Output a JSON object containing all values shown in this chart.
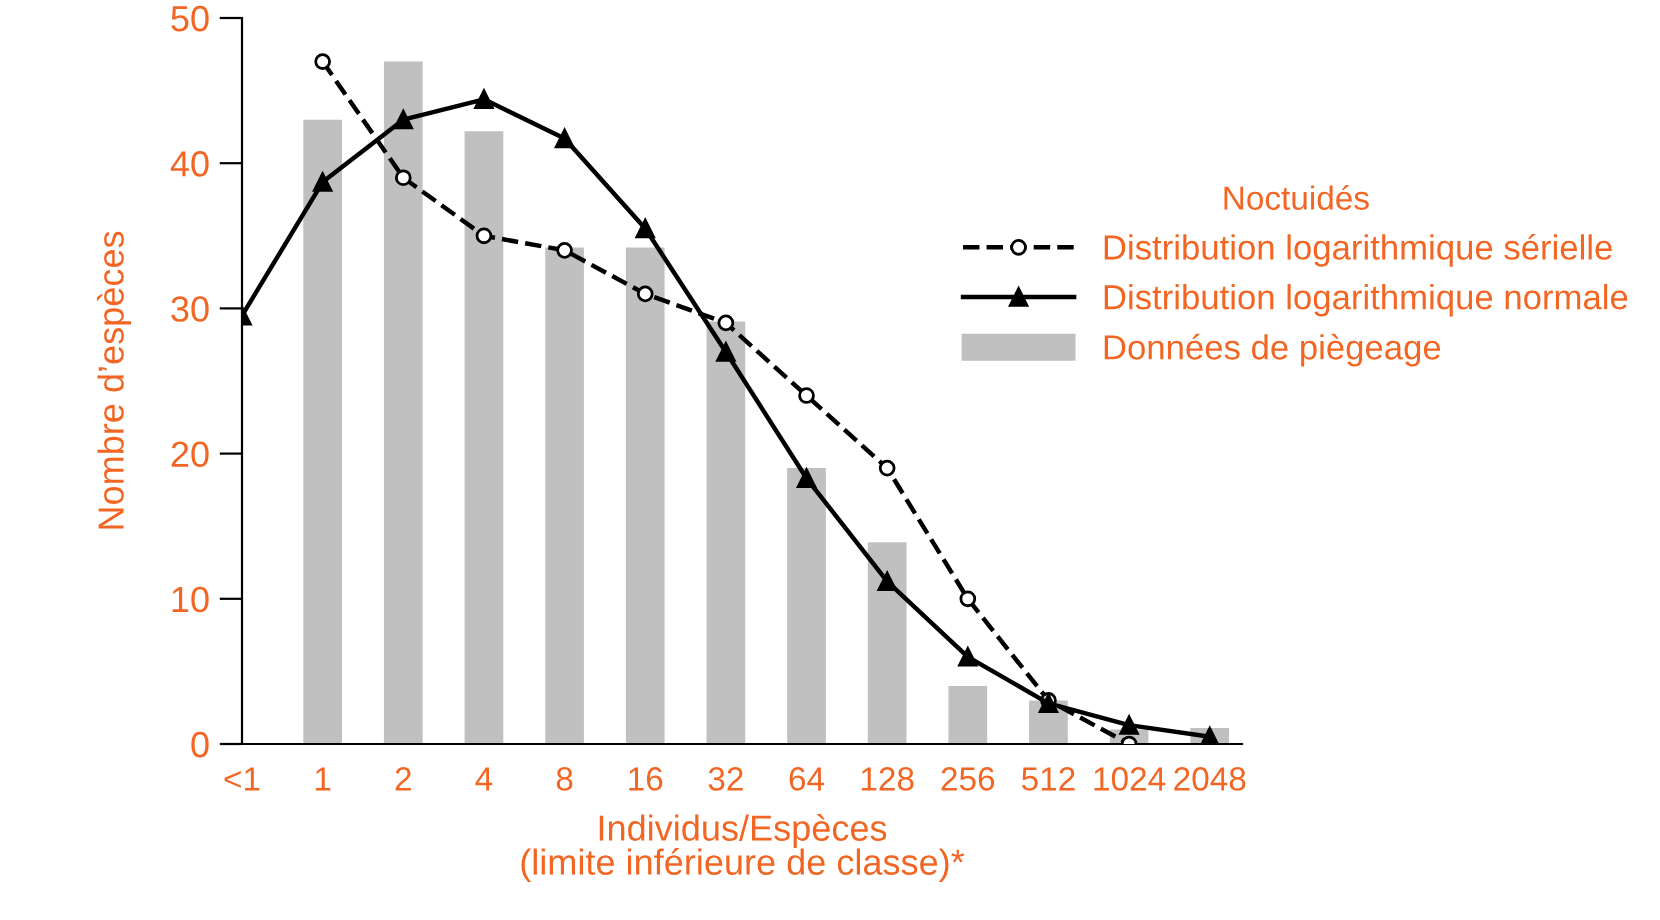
{
  "chart_data": {
    "type": "bar",
    "xlabel": "Individus/Espèces\n(limite inférieure de classe)*",
    "ylabel": "Nombre d’espèces",
    "legend_title": "Noctuidés",
    "categories": [
      "<1",
      "1",
      "2",
      "4",
      "8",
      "16",
      "32",
      "64",
      "128",
      "256",
      "512",
      "1024",
      "2048"
    ],
    "series": [
      {
        "name": "Distribution logarithmique sérielle",
        "type": "line",
        "color": "#000000",
        "marker": "circle",
        "line_style": "dashed",
        "values": [
          null,
          47,
          39,
          35,
          34,
          31,
          29,
          24,
          19,
          10,
          3,
          0,
          null
        ]
      },
      {
        "name": "Distribution logarithmique normale",
        "type": "line",
        "color": "#000000",
        "marker": "triangle",
        "line_style": "solid",
        "values": [
          29.5,
          38.7,
          43,
          44.4,
          41.7,
          35.5,
          27,
          18.3,
          11.2,
          6,
          2.8,
          1.3,
          0.5
        ]
      },
      {
        "name": "Données de piègeage",
        "color": "#c0c0c0",
        "values": [
          null,
          43,
          47,
          42.2,
          34.2,
          34.2,
          29.1,
          19,
          13.9,
          4,
          3,
          1,
          1.1
        ]
      }
    ],
    "ylim": [
      0,
      50
    ],
    "yticks": [
      0,
      10,
      20,
      30,
      40,
      50
    ],
    "grid": false,
    "legend": "right"
  }
}
